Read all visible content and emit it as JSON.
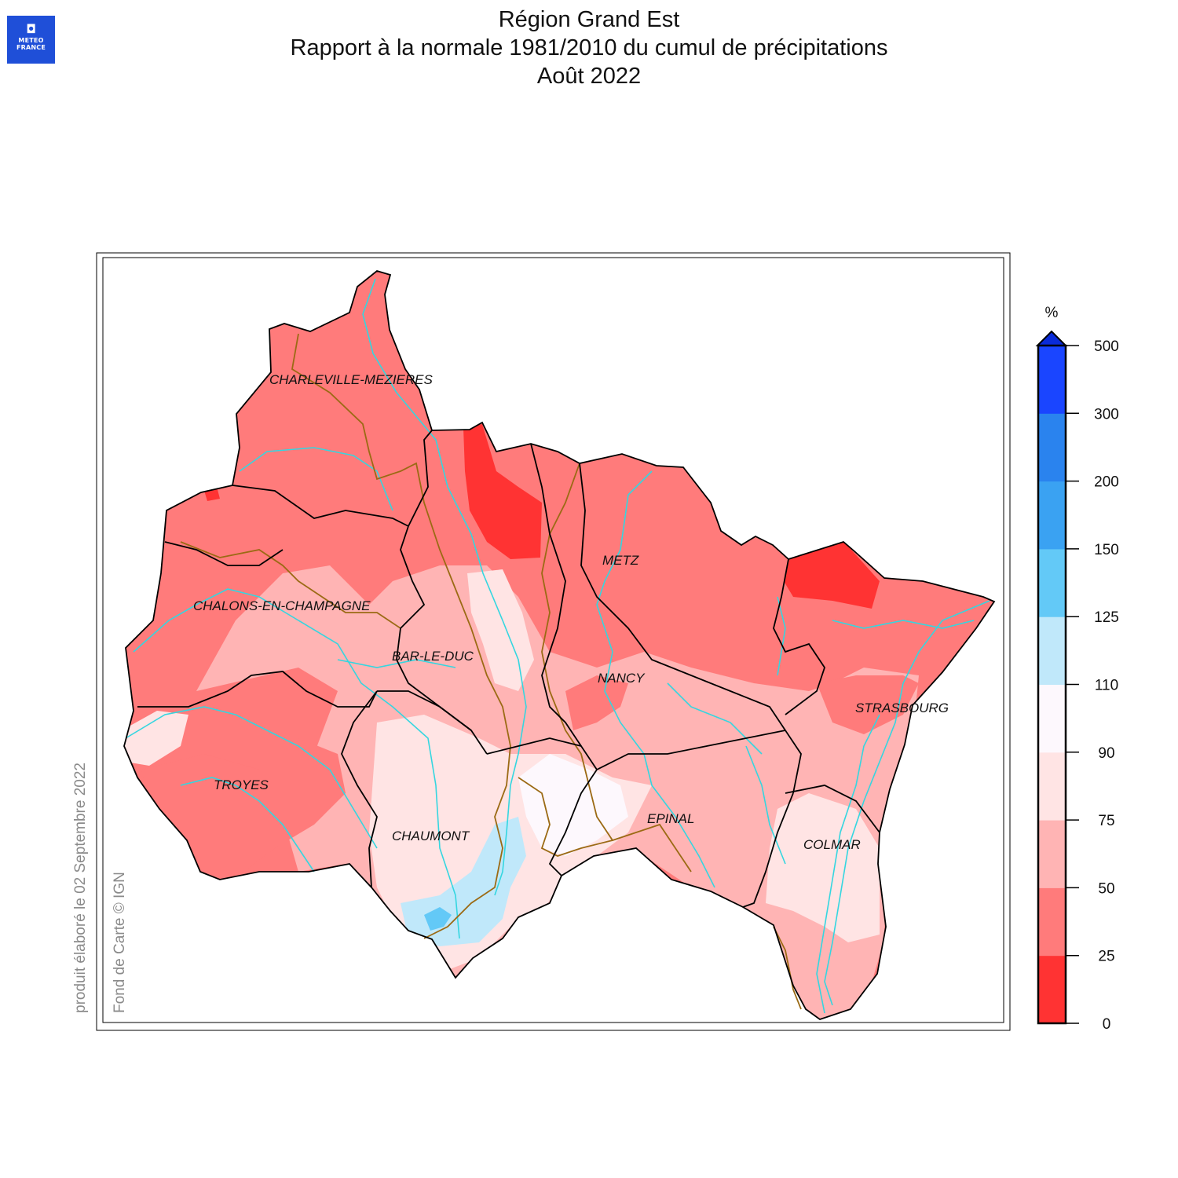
{
  "logo": {
    "line1": "METEO",
    "line2": "FRANCE"
  },
  "title": {
    "line1": "Région Grand Est",
    "line2": "Rapport à la normale 1981/2010 du cumul de précipitations",
    "line3": "Août 2022"
  },
  "credits": {
    "produced": "produit élaboré le 02 Septembre 2022",
    "basemap": "Fond de Carte © IGN"
  },
  "legend": {
    "unit": "%",
    "ticks": [
      "0",
      "25",
      "50",
      "75",
      "90",
      "110",
      "125",
      "150",
      "200",
      "300",
      "500"
    ],
    "colors": [
      "#ff3333",
      "#ff7b7b",
      "#ffb4b4",
      "#ffe4e4",
      "#fdf8fd",
      "#c0e8fa",
      "#63c9f7",
      "#3aa2f2",
      "#2a83ee",
      "#1a45ff"
    ],
    "overflow_color": "#0a2bd8"
  },
  "cities": [
    {
      "name": "CHARLEVILLE-MEZIERES"
    },
    {
      "name": "METZ"
    },
    {
      "name": "CHALONS-EN-CHAMPAGNE"
    },
    {
      "name": "BAR-LE-DUC"
    },
    {
      "name": "NANCY"
    },
    {
      "name": "STRASBOURG"
    },
    {
      "name": "TROYES"
    },
    {
      "name": "EPINAL"
    },
    {
      "name": "CHAUMONT"
    },
    {
      "name": "COLMAR"
    }
  ],
  "colors": {
    "river": "#34d6e0",
    "basin": "#9b6a14",
    "border": "#000000"
  }
}
